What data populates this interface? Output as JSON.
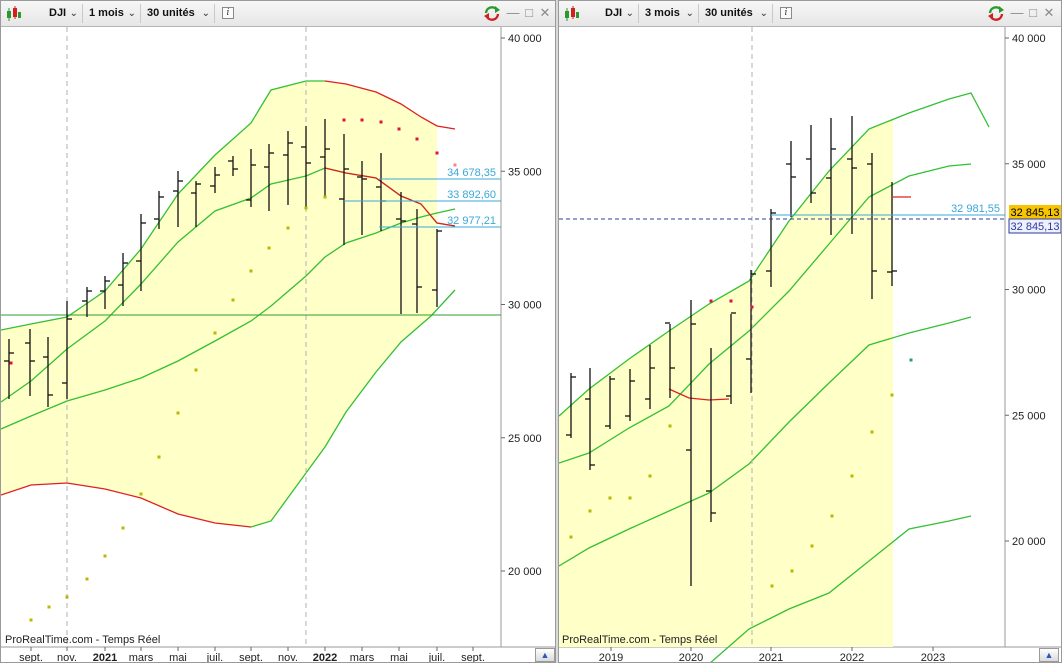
{
  "colors": {
    "band_fill": "#ffffc8",
    "band_green": "#33c033",
    "band_red": "#e02020",
    "bars": "#111111",
    "sar_dot": "#b8b800",
    "sar_dot_red": "#e01040",
    "level_blue": "#3aa8d8",
    "price_tag": "#f6c400",
    "dashed": "#b0b0b0",
    "cursor_line": "#2c3c9c"
  },
  "left": {
    "toolbar": {
      "symbol": "DJI",
      "period": "1 mois",
      "units": "30 unités"
    },
    "y_ticks": [
      "40 000",
      "35 000",
      "30 000",
      "25 000",
      "20 000"
    ],
    "x_labels": [
      "sept.",
      "nov.",
      "2021",
      "mars",
      "mai",
      "juil.",
      "sept.",
      "nov.",
      "2022",
      "mars",
      "mai",
      "juil.",
      "sept."
    ],
    "levels": [
      "34 678,35",
      "33 892,60",
      "32 977,21"
    ],
    "watermark": "ProRealTime.com - Temps Réel"
  },
  "right": {
    "toolbar": {
      "symbol": "DJI",
      "period": "3 mois",
      "units": "30 unités"
    },
    "y_ticks": [
      "40 000",
      "35 000",
      "30 000",
      "25 000",
      "20 000"
    ],
    "x_labels": [
      "2019",
      "2020",
      "2021",
      "2022",
      "2023"
    ],
    "level": "32 981,55",
    "price_tag": "32 845,13",
    "cursor_tag": "32 845,13",
    "watermark": "ProRealTime.com - Temps Réel"
  },
  "icons": [
    "candlestick-chart-icon",
    "chevron-down-icon",
    "info-icon",
    "refresh-icon",
    "minimize-icon",
    "maximize-icon",
    "close-icon",
    "scroll-up-icon"
  ]
}
